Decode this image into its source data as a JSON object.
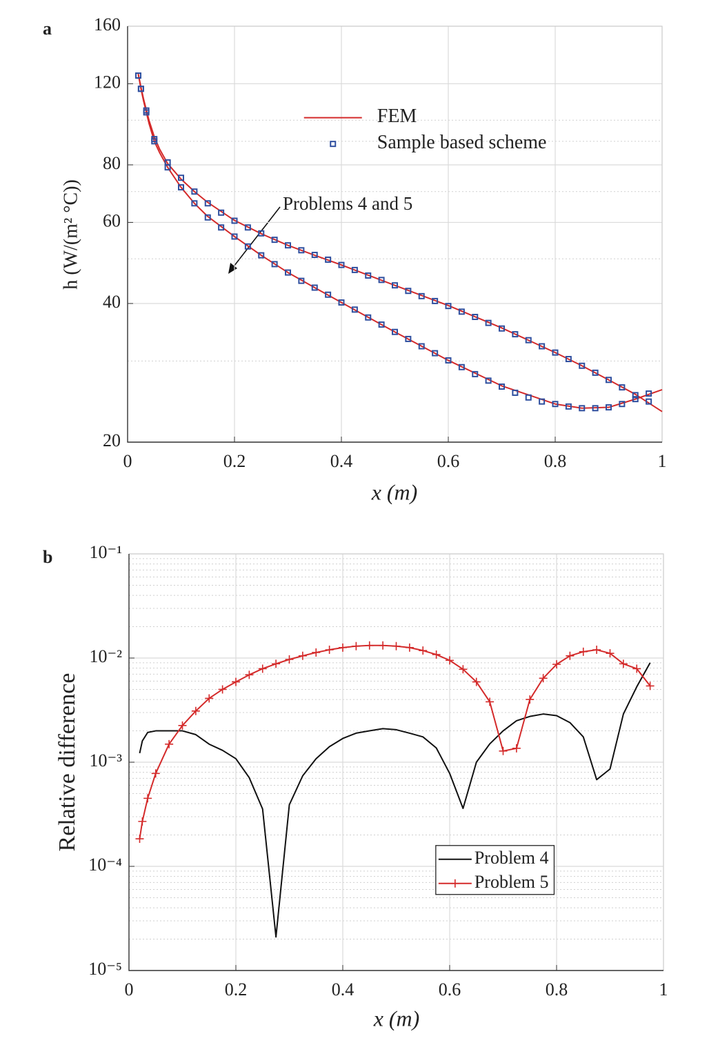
{
  "chart_data": [
    {
      "type": "line",
      "panel_label": "a",
      "xlabel": "x (m)",
      "ylabel": "h (W/(m² °C))",
      "annotation": "Problems 4 and 5",
      "xlim": [
        0,
        1
      ],
      "ylim": [
        20,
        160
      ],
      "xticks": [
        0,
        0.2,
        0.4,
        0.6,
        0.8,
        1
      ],
      "yticks": [
        20,
        40,
        60,
        80,
        120,
        160
      ],
      "log_y": true,
      "grid": true,
      "minor_grid": true,
      "legend": "upper center",
      "legend_frame": false,
      "series": [
        {
          "name": "FEM",
          "color": "#d42a2a",
          "style": "line",
          "curves": [
            {
              "x": [
                0.02,
                0.025,
                0.03,
                0.04,
                0.05,
                0.06,
                0.075,
                0.1,
                0.125,
                0.15,
                0.2,
                0.25,
                0.3,
                0.35,
                0.4,
                0.5,
                0.6,
                0.7,
                0.8,
                0.85,
                0.9,
                0.95,
                1
              ],
              "values": [
                126,
                118,
                111,
                100,
                92,
                86.5,
                80.5,
                74.5,
                70,
                66.3,
                60.6,
                56.7,
                53.5,
                50.9,
                48.5,
                43.8,
                39.6,
                35.4,
                31.3,
                29.3,
                27.3,
                25.4,
                23.3
              ]
            },
            {
              "x": [
                0.02,
                0.025,
                0.03,
                0.04,
                0.05,
                0.06,
                0.075,
                0.1,
                0.125,
                0.15,
                0.2,
                0.25,
                0.3,
                0.35,
                0.4,
                0.5,
                0.6,
                0.7,
                0.8,
                0.85,
                0.9,
                0.95,
                1
              ],
              "values": [
                126,
                117,
                110,
                98.5,
                90,
                85,
                79,
                71.5,
                66,
                61.8,
                55.9,
                50.9,
                46.7,
                43.3,
                40.2,
                34.7,
                30.1,
                26.5,
                24.2,
                23.7,
                23.8,
                24.8,
                26.0
              ]
            }
          ]
        },
        {
          "name": "Sample based scheme",
          "color": "#2f4f9f",
          "style": "square",
          "curves": [
            {
              "x": [
                0.02,
                0.025,
                0.035,
                0.05,
                0.075,
                0.1,
                0.125,
                0.15,
                0.175,
                0.2,
                0.225,
                0.25,
                0.275,
                0.3,
                0.325,
                0.35,
                0.375,
                0.4,
                0.425,
                0.45,
                0.475,
                0.5,
                0.525,
                0.55,
                0.575,
                0.6,
                0.625,
                0.65,
                0.675,
                0.7,
                0.725,
                0.75,
                0.775,
                0.8,
                0.825,
                0.85,
                0.875,
                0.9,
                0.925,
                0.95,
                0.975
              ],
              "values": [
                125,
                117,
                105,
                91,
                81,
                75,
                70,
                66,
                63,
                60.5,
                58.5,
                56.8,
                55,
                53.5,
                52.2,
                51,
                49.8,
                48.5,
                47.3,
                46,
                45,
                43.8,
                42.6,
                41.5,
                40.5,
                39.5,
                38.4,
                37.4,
                36.3,
                35.3,
                34.3,
                33.3,
                32.3,
                31.3,
                30.3,
                29.3,
                28.3,
                27.3,
                26.3,
                25.3,
                24.5
              ]
            },
            {
              "x": [
                0.02,
                0.025,
                0.035,
                0.05,
                0.075,
                0.1,
                0.125,
                0.15,
                0.175,
                0.2,
                0.225,
                0.25,
                0.275,
                0.3,
                0.325,
                0.35,
                0.375,
                0.4,
                0.425,
                0.45,
                0.475,
                0.5,
                0.525,
                0.55,
                0.575,
                0.6,
                0.625,
                0.65,
                0.675,
                0.7,
                0.725,
                0.75,
                0.775,
                0.8,
                0.825,
                0.85,
                0.875,
                0.9,
                0.925,
                0.95,
                0.975
              ],
              "values": [
                125,
                117,
                104,
                90,
                79,
                71.5,
                66,
                61.5,
                58.5,
                55.9,
                53.2,
                50.9,
                48.7,
                46.7,
                44.8,
                43.3,
                41.8,
                40.2,
                38.8,
                37.3,
                36.0,
                34.7,
                33.5,
                32.3,
                31.2,
                30.1,
                29.1,
                28.1,
                27.2,
                26.4,
                25.6,
                25.0,
                24.5,
                24.2,
                23.9,
                23.7,
                23.7,
                23.8,
                24.2,
                24.8,
                25.5
              ]
            }
          ]
        }
      ]
    },
    {
      "type": "line",
      "panel_label": "b",
      "xlabel": "x (m)",
      "ylabel": "Relative difference",
      "xlim": [
        0,
        1
      ],
      "ylim": [
        1e-05,
        0.1
      ],
      "xticks": [
        0,
        0.2,
        0.4,
        0.6,
        0.8,
        1
      ],
      "yticks": [
        {
          "value": 1e-05,
          "label": "10⁻⁵"
        },
        {
          "value": 0.0001,
          "label": "10⁻⁴"
        },
        {
          "value": 0.001,
          "label": "10⁻³"
        },
        {
          "value": 0.01,
          "label": "10⁻²"
        },
        {
          "value": 0.1,
          "label": "10⁻¹"
        }
      ],
      "log_y": true,
      "grid": true,
      "minor_grid": true,
      "legend": "lower right",
      "legend_frame": true,
      "x": [
        0.02,
        0.025,
        0.035,
        0.05,
        0.075,
        0.1,
        0.125,
        0.15,
        0.175,
        0.2,
        0.225,
        0.25,
        0.275,
        0.3,
        0.325,
        0.35,
        0.375,
        0.4,
        0.425,
        0.45,
        0.475,
        0.5,
        0.525,
        0.55,
        0.575,
        0.6,
        0.625,
        0.65,
        0.675,
        0.7,
        0.725,
        0.75,
        0.775,
        0.8,
        0.825,
        0.85,
        0.875,
        0.9,
        0.925,
        0.95,
        0.975
      ],
      "series": [
        {
          "name": "Problem 4",
          "color": "#111111",
          "style": "line",
          "values": [
            0.00122,
            0.0016,
            0.00193,
            0.002,
            0.002,
            0.002,
            0.00184,
            0.00149,
            0.0013,
            0.00108,
            0.00071,
            0.000355,
            2.1e-05,
            0.00039,
            0.00074,
            0.00108,
            0.00141,
            0.00169,
            0.0019,
            0.002,
            0.0021,
            0.00205,
            0.0019,
            0.00175,
            0.00137,
            0.00078,
            0.00036,
            0.001,
            0.0015,
            0.002,
            0.0025,
            0.00275,
            0.0029,
            0.0028,
            0.0024,
            0.00175,
            0.00068,
            0.00086,
            0.0029,
            0.0053,
            0.009
          ]
        },
        {
          "name": "Problem 5",
          "color": "#d42a2a",
          "style": "line-plus",
          "values": [
            0.000184,
            0.00027,
            0.00045,
            0.00078,
            0.00149,
            0.00225,
            0.0031,
            0.0041,
            0.005,
            0.0059,
            0.0069,
            0.0079,
            0.0088,
            0.0097,
            0.0105,
            0.0113,
            0.012,
            0.0126,
            0.013,
            0.0132,
            0.0132,
            0.013,
            0.0126,
            0.0118,
            0.0108,
            0.0095,
            0.0078,
            0.0059,
            0.0038,
            0.00128,
            0.00136,
            0.004,
            0.0064,
            0.0087,
            0.0105,
            0.0115,
            0.012,
            0.0111,
            0.0088,
            0.0079,
            0.0054
          ]
        }
      ]
    }
  ]
}
